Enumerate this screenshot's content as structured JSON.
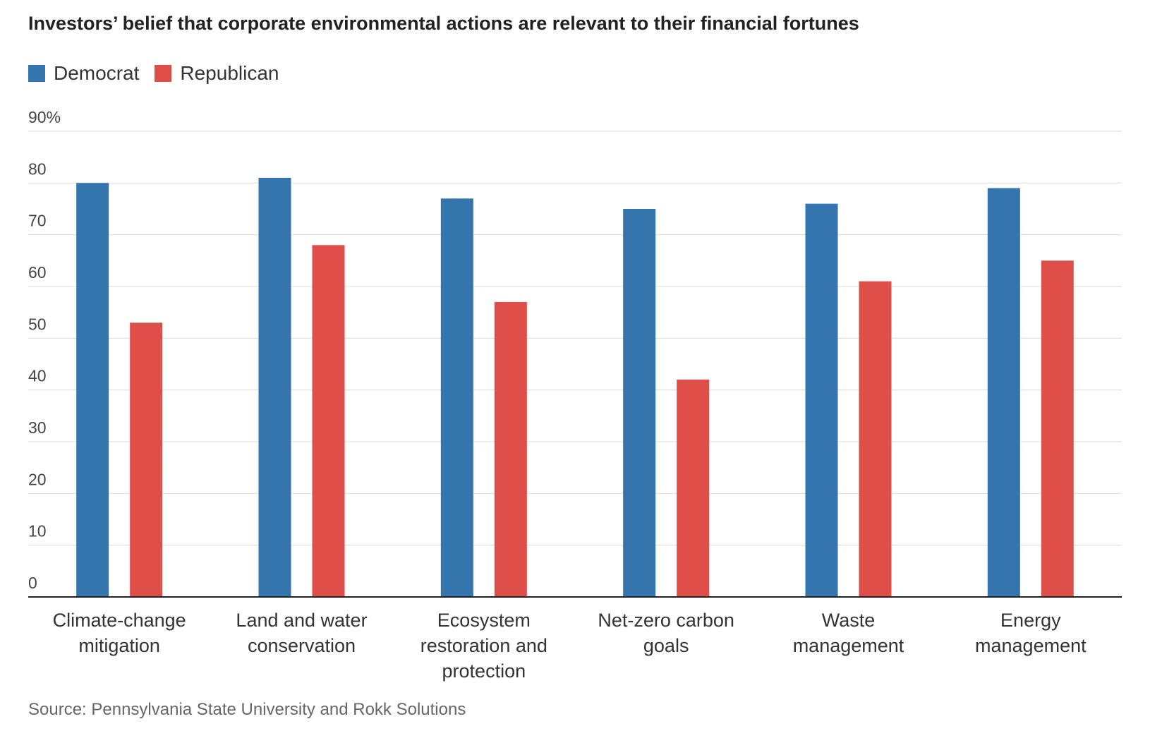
{
  "title": "Investors’ belief that corporate environmental actions are relevant to their financial fortunes",
  "source": "Source: Pennsylvania State University and Rokk Solutions",
  "chart_data": {
    "type": "bar",
    "title": "Investors’ belief that corporate environmental actions are relevant to their financial fortunes",
    "categories": [
      [
        "Climate-change",
        "mitigation"
      ],
      [
        "Land and water",
        "conservation"
      ],
      [
        "Ecosystem",
        "restoration and",
        "protection"
      ],
      [
        "Net-zero carbon",
        "goals"
      ],
      [
        "Waste",
        "management"
      ],
      [
        "Energy",
        "management"
      ]
    ],
    "series": [
      {
        "name": "Democrat",
        "color": "#3375ac",
        "values": [
          80,
          81,
          77,
          75,
          76,
          79
        ]
      },
      {
        "name": "Republican",
        "color": "#de4f4a",
        "values": [
          53,
          68,
          57,
          42,
          61,
          65
        ]
      }
    ],
    "ylim": [
      0,
      90
    ],
    "yticks": [
      0,
      10,
      20,
      30,
      40,
      50,
      60,
      70,
      80,
      90
    ],
    "ytick_labels": [
      "0",
      "10",
      "20",
      "30",
      "40",
      "50",
      "60",
      "70",
      "80",
      "90%"
    ],
    "xlabel": "",
    "ylabel": "",
    "grid": true,
    "legend": "top-left"
  }
}
